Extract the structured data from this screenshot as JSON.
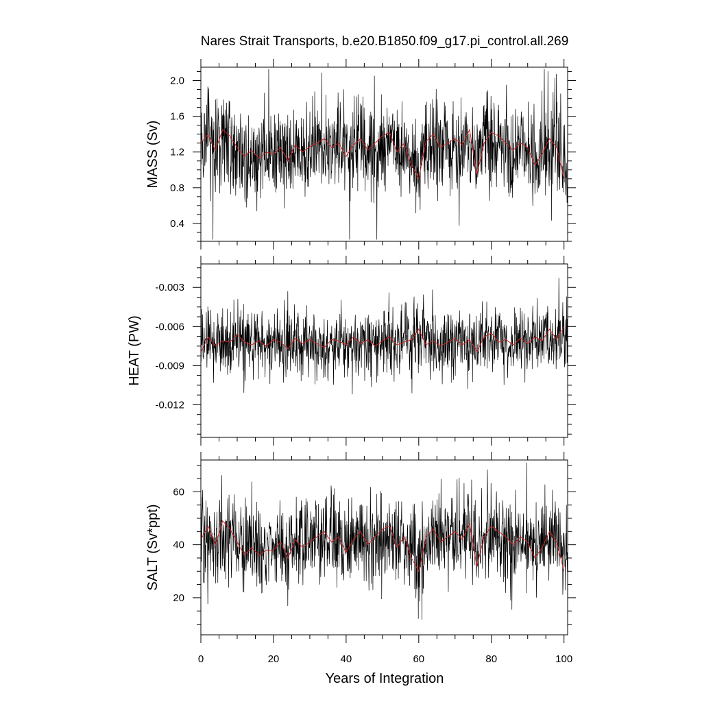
{
  "chart_data": {
    "type": "line",
    "title": "Nares Strait Transports, b.e20.B1850.f09_g17.pi_control.all.269",
    "xlabel": "Years of Integration",
    "xlim": [
      0,
      101
    ],
    "xticks": [
      0,
      20,
      40,
      60,
      80,
      100
    ],
    "xtick_labels": [
      "0",
      "20",
      "40",
      "60",
      "80",
      "100"
    ],
    "colors": {
      "raw": "#000000",
      "smoothed": "#cc2222"
    },
    "panels": [
      {
        "ylabel": "MASS (Sv)",
        "ylim": [
          0.2,
          2.15
        ],
        "yticks": [
          0.4,
          0.8,
          1.2,
          1.6,
          2.0
        ],
        "ytick_labels": [
          "0.4",
          "0.8",
          "1.2",
          "1.6",
          "2.0"
        ],
        "monthly_mean": 1.22,
        "monthly_amplitude": 0.36,
        "monthly_min": 0.22,
        "monthly_max": 2.13,
        "smoothed": [
          [
            0,
            1.3
          ],
          [
            2,
            1.4
          ],
          [
            4,
            1.22
          ],
          [
            6,
            1.45
          ],
          [
            8,
            1.38
          ],
          [
            10,
            1.25
          ],
          [
            12,
            1.15
          ],
          [
            14,
            1.22
          ],
          [
            16,
            1.13
          ],
          [
            18,
            1.2
          ],
          [
            20,
            1.18
          ],
          [
            22,
            1.25
          ],
          [
            24,
            1.1
          ],
          [
            26,
            1.28
          ],
          [
            28,
            1.2
          ],
          [
            30,
            1.26
          ],
          [
            32,
            1.3
          ],
          [
            34,
            1.35
          ],
          [
            36,
            1.25
          ],
          [
            38,
            1.3
          ],
          [
            40,
            1.15
          ],
          [
            42,
            1.28
          ],
          [
            44,
            1.35
          ],
          [
            46,
            1.22
          ],
          [
            48,
            1.3
          ],
          [
            50,
            1.38
          ],
          [
            52,
            1.42
          ],
          [
            54,
            1.2
          ],
          [
            56,
            1.3
          ],
          [
            58,
            1.05
          ],
          [
            60,
            0.9
          ],
          [
            62,
            1.32
          ],
          [
            64,
            1.4
          ],
          [
            66,
            1.25
          ],
          [
            68,
            1.3
          ],
          [
            70,
            1.35
          ],
          [
            72,
            1.28
          ],
          [
            74,
            1.45
          ],
          [
            76,
            0.95
          ],
          [
            78,
            1.3
          ],
          [
            80,
            1.42
          ],
          [
            82,
            1.38
          ],
          [
            84,
            1.3
          ],
          [
            86,
            1.22
          ],
          [
            88,
            1.3
          ],
          [
            90,
            1.25
          ],
          [
            92,
            1.05
          ],
          [
            94,
            1.18
          ],
          [
            96,
            1.35
          ],
          [
            98,
            1.25
          ],
          [
            100,
            0.9
          ]
        ]
      },
      {
        "ylabel": "HEAT (PW)",
        "ylim": [
          -0.0145,
          -0.0012
        ],
        "yticks": [
          -0.012,
          -0.009,
          -0.006,
          -0.003
        ],
        "ytick_labels": [
          "-0.012",
          "-0.009",
          "-0.006",
          "-0.003"
        ],
        "monthly_mean": -0.0073,
        "monthly_amplitude": 0.0017,
        "monthly_min": -0.0143,
        "monthly_max": -0.0013,
        "smoothed": [
          [
            0,
            -0.008
          ],
          [
            2,
            -0.0068
          ],
          [
            4,
            -0.0075
          ],
          [
            6,
            -0.0071
          ],
          [
            8,
            -0.0072
          ],
          [
            10,
            -0.0066
          ],
          [
            12,
            -0.0072
          ],
          [
            14,
            -0.0074
          ],
          [
            16,
            -0.0071
          ],
          [
            18,
            -0.0075
          ],
          [
            20,
            -0.007
          ],
          [
            22,
            -0.0072
          ],
          [
            24,
            -0.0077
          ],
          [
            26,
            -0.0069
          ],
          [
            28,
            -0.0073
          ],
          [
            30,
            -0.007
          ],
          [
            32,
            -0.0073
          ],
          [
            34,
            -0.0076
          ],
          [
            36,
            -0.007
          ],
          [
            38,
            -0.0071
          ],
          [
            40,
            -0.0074
          ],
          [
            42,
            -0.0068
          ],
          [
            44,
            -0.0073
          ],
          [
            46,
            -0.007
          ],
          [
            48,
            -0.0075
          ],
          [
            50,
            -0.0071
          ],
          [
            52,
            -0.0068
          ],
          [
            54,
            -0.0074
          ],
          [
            56,
            -0.0072
          ],
          [
            58,
            -0.007
          ],
          [
            60,
            -0.0062
          ],
          [
            62,
            -0.0074
          ],
          [
            64,
            -0.0071
          ],
          [
            66,
            -0.0075
          ],
          [
            68,
            -0.0072
          ],
          [
            70,
            -0.0069
          ],
          [
            72,
            -0.0074
          ],
          [
            74,
            -0.007
          ],
          [
            76,
            -0.0079
          ],
          [
            78,
            -0.0068
          ],
          [
            80,
            -0.0065
          ],
          [
            82,
            -0.0072
          ],
          [
            84,
            -0.007
          ],
          [
            86,
            -0.0074
          ],
          [
            88,
            -0.0069
          ],
          [
            90,
            -0.0073
          ],
          [
            92,
            -0.0068
          ],
          [
            94,
            -0.0071
          ],
          [
            96,
            -0.0062
          ],
          [
            98,
            -0.007
          ],
          [
            100,
            -0.006
          ]
        ]
      },
      {
        "ylabel": "SALT (Sv*ppt)",
        "ylim": [
          6,
          72
        ],
        "yticks": [
          20,
          40,
          60
        ],
        "ytick_labels": [
          "20",
          "40",
          "60"
        ],
        "monthly_mean": 40.5,
        "monthly_amplitude": 11,
        "monthly_min": 7,
        "monthly_max": 71,
        "smoothed": [
          [
            0,
            42
          ],
          [
            2,
            47
          ],
          [
            4,
            40
          ],
          [
            6,
            49
          ],
          [
            8,
            46
          ],
          [
            10,
            41
          ],
          [
            12,
            36
          ],
          [
            14,
            39
          ],
          [
            16,
            36
          ],
          [
            18,
            38
          ],
          [
            20,
            38
          ],
          [
            22,
            41
          ],
          [
            24,
            35
          ],
          [
            26,
            42
          ],
          [
            28,
            39
          ],
          [
            30,
            41
          ],
          [
            32,
            43
          ],
          [
            34,
            45
          ],
          [
            36,
            41
          ],
          [
            38,
            43
          ],
          [
            40,
            37
          ],
          [
            42,
            42
          ],
          [
            44,
            45
          ],
          [
            46,
            40
          ],
          [
            48,
            43
          ],
          [
            50,
            46
          ],
          [
            52,
            47
          ],
          [
            54,
            39
          ],
          [
            56,
            43
          ],
          [
            58,
            35
          ],
          [
            60,
            30
          ],
          [
            62,
            43
          ],
          [
            64,
            46
          ],
          [
            66,
            41
          ],
          [
            68,
            43
          ],
          [
            70,
            45
          ],
          [
            72,
            42
          ],
          [
            74,
            48
          ],
          [
            76,
            32
          ],
          [
            78,
            43
          ],
          [
            80,
            47
          ],
          [
            82,
            45
          ],
          [
            84,
            43
          ],
          [
            86,
            40
          ],
          [
            88,
            43
          ],
          [
            90,
            41
          ],
          [
            92,
            35
          ],
          [
            94,
            39
          ],
          [
            96,
            45
          ],
          [
            98,
            41
          ],
          [
            100,
            30
          ]
        ]
      }
    ]
  }
}
